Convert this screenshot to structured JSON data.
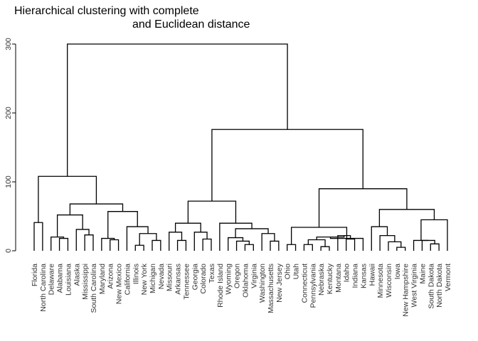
{
  "chart_data": {
    "type": "dendrogram",
    "title_lines": [
      "Hierarchical clustering with complete",
      "and Euclidean distance"
    ],
    "xlabel": "",
    "ylabel": "",
    "ylim": [
      0,
      300
    ],
    "yticks": [
      0,
      100,
      200,
      300
    ],
    "grid": false,
    "leaves": [
      "Florida",
      "North Carolina",
      "Delaware",
      "Alabama",
      "Louisiana",
      "Alaska",
      "Mississippi",
      "South Carolina",
      "Maryland",
      "Arizona",
      "New Mexico",
      "California",
      "Illinois",
      "New York",
      "Michigan",
      "Nevada",
      "Missouri",
      "Arkansas",
      "Tennessee",
      "Georgia",
      "Colorado",
      "Texas",
      "Rhode Island",
      "Wyoming",
      "Oregon",
      "Oklahoma",
      "Virginia",
      "Washington",
      "Massachusetts",
      "New Jersey",
      "Ohio",
      "Utah",
      "Connecticut",
      "Pennsylvania",
      "Nebraska",
      "Kentucky",
      "Montana",
      "Idaho",
      "Indiana",
      "Kansas",
      "Hawaii",
      "Minnesota",
      "Wisconsin",
      "Iowa",
      "New Hampshire",
      "West Virginia",
      "Maine",
      "South Dakota",
      "North Dakota",
      "Vermont"
    ],
    "merges": [
      {
        "a": 0,
        "b": 1,
        "h": 41
      },
      {
        "a": 3,
        "b": 4,
        "h": 18
      },
      {
        "a": 2,
        "b": "m1",
        "h": 20
      },
      {
        "a": 6,
        "b": 7,
        "h": 23
      },
      {
        "a": 5,
        "b": "m3",
        "h": 31
      },
      {
        "a": "m2",
        "b": "m4",
        "h": 52
      },
      {
        "a": 9,
        "b": 10,
        "h": 16
      },
      {
        "a": 8,
        "b": "m6",
        "h": 18
      },
      {
        "a": 12,
        "b": 13,
        "h": 8
      },
      {
        "a": 14,
        "b": 15,
        "h": 15
      },
      {
        "a": "m8",
        "b": "m9",
        "h": 25
      },
      {
        "a": 11,
        "b": "m10",
        "h": 35
      },
      {
        "a": "m7",
        "b": "m11",
        "h": 57
      },
      {
        "a": "m5",
        "b": "m12",
        "h": 68
      },
      {
        "a": "m0",
        "b": "m13",
        "h": 108
      },
      {
        "a": 17,
        "b": 18,
        "h": 15
      },
      {
        "a": 16,
        "b": "m15",
        "h": 27
      },
      {
        "a": 20,
        "b": 21,
        "h": 17
      },
      {
        "a": 19,
        "b": "m17",
        "h": 27
      },
      {
        "a": "m16",
        "b": "m18",
        "h": 40
      },
      {
        "a": 25,
        "b": 26,
        "h": 9
      },
      {
        "a": 24,
        "b": "m20",
        "h": 14
      },
      {
        "a": 23,
        "b": "m21",
        "h": 19
      },
      {
        "a": 28,
        "b": 29,
        "h": 14
      },
      {
        "a": 27,
        "b": "m23",
        "h": 25
      },
      {
        "a": "m22",
        "b": "m24",
        "h": 32
      },
      {
        "a": 22,
        "b": "m25",
        "h": 40
      },
      {
        "a": "m19",
        "b": "m26",
        "h": 72
      },
      {
        "a": 30,
        "b": 31,
        "h": 9
      },
      {
        "a": 32,
        "b": 33,
        "h": 9
      },
      {
        "a": 34,
        "b": 35,
        "h": 6
      },
      {
        "a": "m29",
        "b": "m30",
        "h": 16
      },
      {
        "a": 37,
        "b": 38,
        "h": 17
      },
      {
        "a": 36,
        "b": "m32",
        "h": 22
      },
      {
        "a": "m31",
        "b": "m33",
        "h": 20
      },
      {
        "a": 39,
        "b": "m34",
        "h": 18
      },
      {
        "a": "m28",
        "b": "m35",
        "h": 34
      },
      {
        "a": 43,
        "b": 44,
        "h": 5
      },
      {
        "a": 42,
        "b": "m37",
        "h": 13
      },
      {
        "a": 41,
        "b": "m38",
        "h": 22
      },
      {
        "a": 40,
        "b": "m39",
        "h": 35
      },
      {
        "a": 47,
        "b": 48,
        "h": 10
      },
      {
        "a": 46,
        "b": "m41",
        "h": 15
      },
      {
        "a": 45,
        "b": "m42",
        "h": 15
      },
      {
        "a": "m43",
        "b": 49,
        "h": 45
      },
      {
        "a": "m40",
        "b": "m44",
        "h": 60
      },
      {
        "a": "m36",
        "b": "m45",
        "h": 90
      },
      {
        "a": "m27",
        "b": "m46",
        "h": 176
      },
      {
        "a": "m14",
        "b": "m47",
        "h": 300
      }
    ]
  }
}
